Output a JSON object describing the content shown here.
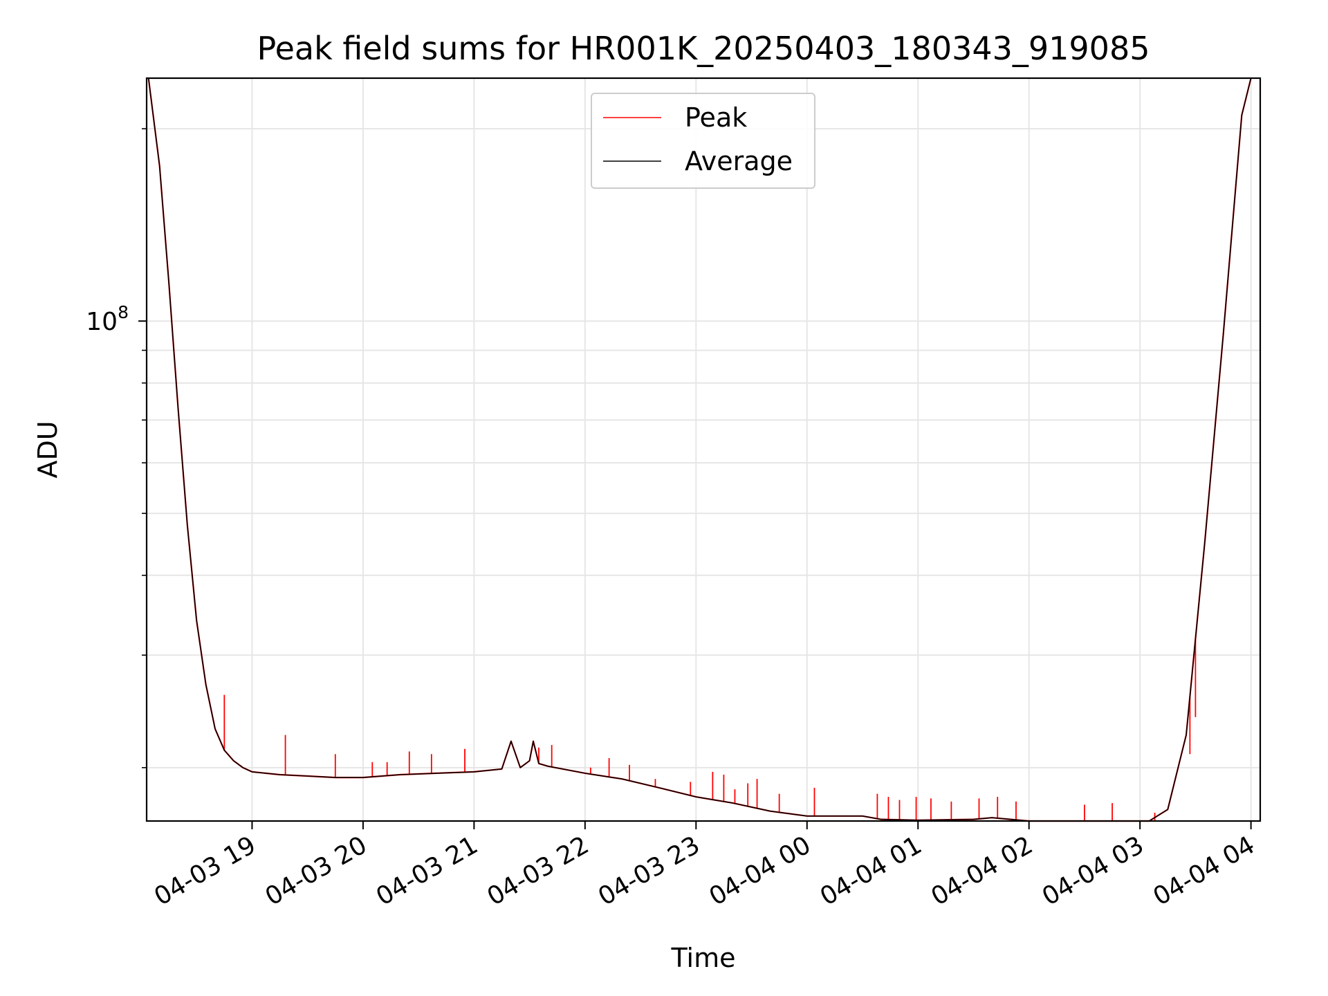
{
  "chart_data": {
    "type": "line",
    "title": "Peak field sums for HR001K_20250403_180343_919085",
    "xlabel": "Time",
    "ylabel": "ADU",
    "y_scale": "log",
    "grid": true,
    "legend_position": "top-center",
    "x_tick_labels": [
      "04-03 19",
      "04-03 20",
      "04-03 21",
      "04-03 22",
      "04-03 23",
      "04-04 00",
      "04-04 01",
      "04-04 02",
      "04-04 03",
      "04-04 04"
    ],
    "x_ticks": [
      "2025-04-03 19:00",
      "2025-04-03 20:00",
      "2025-04-03 21:00",
      "2025-04-03 22:00",
      "2025-04-03 23:00",
      "2025-04-04 00:00",
      "2025-04-04 01:00",
      "2025-04-04 02:00",
      "2025-04-04 03:00",
      "2025-04-04 04:00"
    ],
    "xlim": [
      "2025-04-03 18:03",
      "2025-04-04 04:05"
    ],
    "y_tick_labels": [
      {
        "base": "10",
        "exp": "8"
      }
    ],
    "y_ticks": [
      100000000
    ],
    "y_minor_ticks": [
      20000000,
      30000000,
      40000000,
      50000000,
      60000000,
      70000000,
      80000000,
      90000000,
      200000000
    ],
    "ylim": [
      16500000,
      240000000
    ],
    "series": [
      {
        "name": "Peak",
        "color": "#ff0000",
        "x": [
          "2025-04-03 18:04",
          "2025-04-03 18:10",
          "2025-04-03 18:15",
          "2025-04-03 18:20",
          "2025-04-03 18:25",
          "2025-04-03 18:30",
          "2025-04-03 18:35",
          "2025-04-03 18:40",
          "2025-04-03 18:45",
          "2025-04-03 18:50",
          "2025-04-03 18:55",
          "2025-04-03 19:00",
          "2025-04-03 19:15",
          "2025-04-03 19:30",
          "2025-04-03 19:45",
          "2025-04-03 20:00",
          "2025-04-03 20:20",
          "2025-04-03 20:40",
          "2025-04-03 21:00",
          "2025-04-03 21:15",
          "2025-04-03 21:20",
          "2025-04-03 21:25",
          "2025-04-03 21:30",
          "2025-04-03 21:32",
          "2025-04-03 21:35",
          "2025-04-03 21:40",
          "2025-04-03 22:00",
          "2025-04-03 22:20",
          "2025-04-03 22:40",
          "2025-04-03 23:00",
          "2025-04-03 23:20",
          "2025-04-03 23:40",
          "2025-04-04 00:00",
          "2025-04-04 00:30",
          "2025-04-04 00:40",
          "2025-04-04 01:00",
          "2025-04-04 01:30",
          "2025-04-04 01:40",
          "2025-04-04 01:50",
          "2025-04-04 02:00",
          "2025-04-04 02:20",
          "2025-04-04 02:40",
          "2025-04-04 02:55",
          "2025-04-04 03:05",
          "2025-04-04 03:15",
          "2025-04-04 03:25",
          "2025-04-04 03:35",
          "2025-04-04 03:45",
          "2025-04-04 03:55",
          "2025-04-04 04:00"
        ],
        "y": [
          240000000,
          175000000,
          115000000,
          73000000,
          48000000,
          34000000,
          27000000,
          23000000,
          21300000,
          20500000,
          20000000,
          19700000,
          19500000,
          19400000,
          19300000,
          19300000,
          19500000,
          19600000,
          19700000,
          19900000,
          22000000,
          20000000,
          20500000,
          22000000,
          20300000,
          20100000,
          19600000,
          19200000,
          18600000,
          18000000,
          17600000,
          17100000,
          16800000,
          16800000,
          16600000,
          16550000,
          16600000,
          16700000,
          16600000,
          16300000,
          16300000,
          16200000,
          15850000,
          16000000,
          17200000,
          22500000,
          45000000,
          95000000,
          210000000,
          240000000
        ],
        "spikes": [
          {
            "x": "2025-04-03 18:45",
            "y": 26000000
          },
          {
            "x": "2025-04-03 19:18",
            "y": 22500000
          },
          {
            "x": "2025-04-03 19:45",
            "y": 21000000
          },
          {
            "x": "2025-04-03 20:05",
            "y": 20400000
          },
          {
            "x": "2025-04-03 20:13",
            "y": 20400000
          },
          {
            "x": "2025-04-03 20:25",
            "y": 21200000
          },
          {
            "x": "2025-04-03 20:37",
            "y": 21000000
          },
          {
            "x": "2025-04-03 20:55",
            "y": 21400000
          },
          {
            "x": "2025-04-03 21:35",
            "y": 21500000
          },
          {
            "x": "2025-04-03 21:42",
            "y": 21700000
          },
          {
            "x": "2025-04-03 22:03",
            "y": 20000000
          },
          {
            "x": "2025-04-03 22:13",
            "y": 20700000
          },
          {
            "x": "2025-04-03 22:24",
            "y": 20200000
          },
          {
            "x": "2025-04-03 22:38",
            "y": 19200000
          },
          {
            "x": "2025-04-03 22:57",
            "y": 19000000
          },
          {
            "x": "2025-04-03 23:09",
            "y": 19700000
          },
          {
            "x": "2025-04-03 23:15",
            "y": 19500000
          },
          {
            "x": "2025-04-03 23:21",
            "y": 18500000
          },
          {
            "x": "2025-04-03 23:28",
            "y": 18900000
          },
          {
            "x": "2025-04-03 23:33",
            "y": 19200000
          },
          {
            "x": "2025-04-03 23:45",
            "y": 18200000
          },
          {
            "x": "2025-04-04 00:04",
            "y": 18600000
          },
          {
            "x": "2025-04-04 00:38",
            "y": 18200000
          },
          {
            "x": "2025-04-04 00:44",
            "y": 18000000
          },
          {
            "x": "2025-04-04 00:50",
            "y": 17800000
          },
          {
            "x": "2025-04-04 00:59",
            "y": 18000000
          },
          {
            "x": "2025-04-04 01:07",
            "y": 17900000
          },
          {
            "x": "2025-04-04 01:18",
            "y": 17700000
          },
          {
            "x": "2025-04-04 01:33",
            "y": 17900000
          },
          {
            "x": "2025-04-04 01:43",
            "y": 18000000
          },
          {
            "x": "2025-04-04 01:53",
            "y": 17700000
          },
          {
            "x": "2025-04-04 02:30",
            "y": 17500000
          },
          {
            "x": "2025-04-04 02:45",
            "y": 17600000
          },
          {
            "x": "2025-04-04 03:08",
            "y": 17000000
          },
          {
            "x": "2025-04-04 03:27",
            "y": 21000000
          },
          {
            "x": "2025-04-04 03:30",
            "y": 24000000
          }
        ]
      },
      {
        "name": "Average",
        "color": "#000000",
        "x": [
          "2025-04-03 18:04",
          "2025-04-03 18:10",
          "2025-04-03 18:15",
          "2025-04-03 18:20",
          "2025-04-03 18:25",
          "2025-04-03 18:30",
          "2025-04-03 18:35",
          "2025-04-03 18:40",
          "2025-04-03 18:45",
          "2025-04-03 18:50",
          "2025-04-03 18:55",
          "2025-04-03 19:00",
          "2025-04-03 19:15",
          "2025-04-03 19:30",
          "2025-04-03 19:45",
          "2025-04-03 20:00",
          "2025-04-03 20:20",
          "2025-04-03 20:40",
          "2025-04-03 21:00",
          "2025-04-03 21:15",
          "2025-04-03 21:20",
          "2025-04-03 21:25",
          "2025-04-03 21:30",
          "2025-04-03 21:32",
          "2025-04-03 21:35",
          "2025-04-03 21:40",
          "2025-04-03 22:00",
          "2025-04-03 22:20",
          "2025-04-03 22:40",
          "2025-04-03 23:00",
          "2025-04-03 23:20",
          "2025-04-03 23:40",
          "2025-04-04 00:00",
          "2025-04-04 00:30",
          "2025-04-04 00:40",
          "2025-04-04 01:00",
          "2025-04-04 01:30",
          "2025-04-04 01:40",
          "2025-04-04 01:50",
          "2025-04-04 02:00",
          "2025-04-04 02:20",
          "2025-04-04 02:40",
          "2025-04-04 02:55",
          "2025-04-04 03:05",
          "2025-04-04 03:15",
          "2025-04-04 03:25",
          "2025-04-04 03:35",
          "2025-04-04 03:45",
          "2025-04-04 03:55",
          "2025-04-04 04:00"
        ],
        "y": [
          240000000,
          175000000,
          115000000,
          73000000,
          48000000,
          34000000,
          27000000,
          23000000,
          21300000,
          20500000,
          20000000,
          19700000,
          19500000,
          19400000,
          19300000,
          19300000,
          19500000,
          19600000,
          19700000,
          19900000,
          22000000,
          20000000,
          20500000,
          22000000,
          20300000,
          20100000,
          19600000,
          19200000,
          18600000,
          18000000,
          17600000,
          17100000,
          16800000,
          16800000,
          16600000,
          16550000,
          16600000,
          16700000,
          16600000,
          16300000,
          16300000,
          16200000,
          15850000,
          16000000,
          17200000,
          22500000,
          45000000,
          95000000,
          210000000,
          240000000
        ]
      }
    ]
  }
}
